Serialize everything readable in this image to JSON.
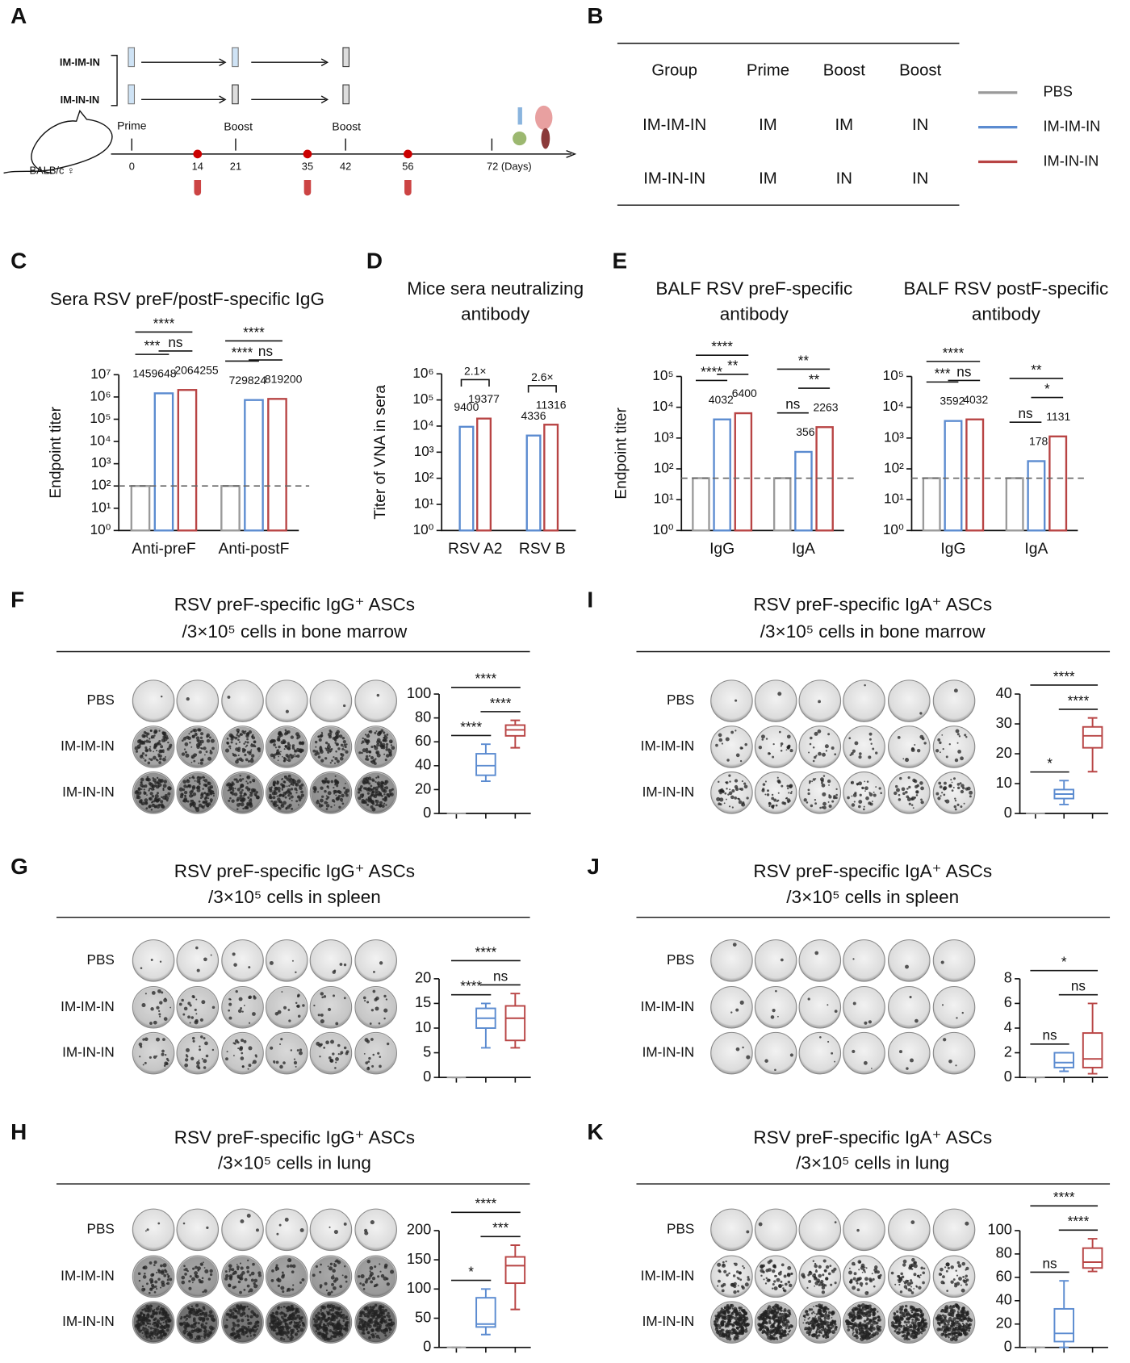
{
  "panel_labels": [
    "A",
    "B",
    "C",
    "D",
    "E",
    "F",
    "G",
    "H",
    "I",
    "J",
    "K"
  ],
  "schematic": {
    "groups": [
      "IM-IM-IN",
      "IM-IN-IN"
    ],
    "steps": [
      "Prime",
      "Boost",
      "Boost"
    ],
    "mouse": "BALB/c ♀",
    "days": [
      "0",
      "14",
      "21",
      "35",
      "42",
      "56",
      "72 (Days)"
    ]
  },
  "table": {
    "header": [
      "Group",
      "Prime",
      "Boost",
      "Boost"
    ],
    "rows": [
      [
        "IM-IM-IN",
        "IM",
        "IM",
        "IN"
      ],
      [
        "IM-IN-IN",
        "IM",
        "IN",
        "IN"
      ]
    ]
  },
  "legend": [
    {
      "name": "PBS",
      "color": "#9a9a9a"
    },
    {
      "name": "IM-IM-IN",
      "color": "#5b8bd0"
    },
    {
      "name": "IM-IN-IN",
      "color": "#b84444"
    }
  ],
  "chart_data": [
    {
      "type": "bar",
      "title": [
        "Sera RSV preF/postF-specific  IgG"
      ],
      "y_label": "Endpoint titer",
      "log_scale": true,
      "categories": [
        "Anti-preF",
        "Anti-postF"
      ],
      "series": [
        {
          "name": "PBS",
          "color": "#9a9a9a",
          "values": [
            100,
            100
          ],
          "labels": false
        },
        {
          "name": "IM-IM-IN",
          "color": "#5b8bd0",
          "values": [
            1459648,
            729824
          ],
          "labels": true
        },
        {
          "name": "IM-IN-IN",
          "color": "#b84444",
          "values": [
            2064255,
            819200
          ],
          "labels": true
        }
      ],
      "ylim": [
        1,
        10000000
      ],
      "yticks": [
        {
          "value": 1,
          "label": "10⁰"
        },
        {
          "value": 10,
          "label": "10¹"
        },
        {
          "value": 100,
          "label": "10²"
        },
        {
          "value": 1000,
          "label": "10³"
        },
        {
          "value": 10000,
          "label": "10⁴"
        },
        {
          "value": 100000,
          "label": "10⁵"
        },
        {
          "value": 1000000,
          "label": "10⁶"
        },
        {
          "value": 10000000,
          "label": "10⁷"
        }
      ],
      "reference_line": 100,
      "comparisons": [
        {
          "label": "***",
          "between": [
            0,
            1
          ]
        },
        {
          "label": "ns",
          "between": [
            1,
            2
          ]
        },
        {
          "label": "****",
          "between": [
            0,
            2
          ]
        },
        {
          "label": "****",
          "between": [
            3,
            4
          ]
        },
        {
          "label": "ns",
          "between": [
            4,
            5
          ]
        },
        {
          "label": "****",
          "between": [
            3,
            5
          ]
        }
      ]
    },
    {
      "type": "bar",
      "title": [
        "Mice sera neutralizing",
        "antibody"
      ],
      "y_label": "Titer of VNA in sera",
      "log_scale": true,
      "bracket": true,
      "categories": [
        "RSV A2",
        "RSV B"
      ],
      "series": [
        {
          "name": "IM-IM-IN",
          "color": "#5b8bd0",
          "values": [
            9400,
            4336
          ],
          "labels": true
        },
        {
          "name": "IM-IN-IN",
          "color": "#b84444",
          "values": [
            19377,
            11316
          ],
          "labels": true
        }
      ],
      "ylim": [
        1,
        1000000
      ],
      "yticks": [
        {
          "value": 1,
          "label": "10⁰"
        },
        {
          "value": 10,
          "label": "10¹"
        },
        {
          "value": 100,
          "label": "10²"
        },
        {
          "value": 1000,
          "label": "10³"
        },
        {
          "value": 10000,
          "label": "10⁴"
        },
        {
          "value": 100000,
          "label": "10⁵"
        },
        {
          "value": 1000000,
          "label": "10⁶"
        }
      ],
      "comparisons": [
        {
          "label": "2.1×",
          "between": [
            0,
            1
          ]
        },
        {
          "label": "2.6×",
          "between": [
            2,
            3
          ]
        }
      ]
    },
    {
      "type": "bar",
      "title": [
        "BALF RSV preF-specific",
        "antibody"
      ],
      "y_label": "Endpoint titer",
      "log_scale": true,
      "categories": [
        "IgG",
        "IgA"
      ],
      "series": [
        {
          "name": "PBS",
          "color": "#9a9a9a",
          "values": [
            50,
            50
          ],
          "labels": false
        },
        {
          "name": "IM-IM-IN",
          "color": "#5b8bd0",
          "values": [
            4032,
            356
          ],
          "labels": true
        },
        {
          "name": "IM-IN-IN",
          "color": "#b84444",
          "values": [
            6400,
            2263
          ],
          "labels": true
        }
      ],
      "ylim": [
        1,
        100000
      ],
      "yticks": [
        {
          "value": 1,
          "label": "10⁰"
        },
        {
          "value": 10,
          "label": "10¹"
        },
        {
          "value": 100,
          "label": "10²"
        },
        {
          "value": 1000,
          "label": "10³"
        },
        {
          "value": 10000,
          "label": "10⁴"
        },
        {
          "value": 100000,
          "label": "10⁵"
        }
      ],
      "reference_line": 50,
      "comparisons": [
        {
          "label": "****",
          "between": [
            0,
            1
          ]
        },
        {
          "label": "**",
          "between": [
            1,
            2
          ]
        },
        {
          "label": "****",
          "between": [
            0,
            2
          ]
        },
        {
          "label": "ns",
          "between": [
            3,
            4
          ]
        },
        {
          "label": "**",
          "between": [
            4,
            5
          ]
        },
        {
          "label": "**",
          "between": [
            3,
            5
          ]
        }
      ]
    },
    {
      "type": "bar",
      "title": [
        "BALF RSV postF-specific",
        "antibody"
      ],
      "log_scale": true,
      "categories": [
        "IgG",
        "IgA"
      ],
      "series": [
        {
          "name": "PBS",
          "color": "#9a9a9a",
          "values": [
            50,
            50
          ],
          "labels": false
        },
        {
          "name": "IM-IM-IN",
          "color": "#5b8bd0",
          "values": [
            3592,
            178
          ],
          "labels": true
        },
        {
          "name": "IM-IN-IN",
          "color": "#b84444",
          "values": [
            4032,
            1131
          ],
          "labels": true
        }
      ],
      "ylim": [
        1,
        100000
      ],
      "yticks": [
        {
          "value": 1,
          "label": "10⁰"
        },
        {
          "value": 10,
          "label": "10¹"
        },
        {
          "value": 100,
          "label": "10²"
        },
        {
          "value": 1000,
          "label": "10³"
        },
        {
          "value": 10000,
          "label": "10⁴"
        },
        {
          "value": 100000,
          "label": "10⁵"
        }
      ],
      "reference_line": 50,
      "comparisons": [
        {
          "label": "***",
          "between": [
            0,
            1
          ]
        },
        {
          "label": "ns",
          "between": [
            1,
            2
          ]
        },
        {
          "label": "****",
          "between": [
            0,
            2
          ]
        },
        {
          "label": "ns",
          "between": [
            3,
            4
          ]
        },
        {
          "label": "*",
          "between": [
            4,
            5
          ]
        },
        {
          "label": "**",
          "between": [
            3,
            5
          ]
        }
      ]
    },
    {
      "type": "box",
      "title": [
        "RSV preF-specific IgG⁺ ASCs",
        "/3×10⁵ cells in bone marrow"
      ],
      "row_labels": [
        "PBS",
        "IM-IM-IN",
        "IM-IN-IN"
      ],
      "series": [
        {
          "color": "#9a9a9a",
          "min": 0,
          "q1": 0,
          "median": 0,
          "q3": 0,
          "max": 0
        },
        {
          "color": "#5b8bd0",
          "min": 27,
          "q1": 32,
          "median": 40,
          "q3": 50,
          "max": 58
        },
        {
          "color": "#b84444",
          "min": 55,
          "q1": 65,
          "median": 70,
          "q3": 74,
          "max": 78
        }
      ],
      "ylim": [
        0,
        100
      ],
      "yticks": [
        0,
        20,
        40,
        60,
        80,
        100
      ],
      "comparisons": [
        {
          "label": "****",
          "between": [
            0,
            1
          ]
        },
        {
          "label": "****",
          "between": [
            1,
            2
          ]
        },
        {
          "label": "****",
          "between": [
            0,
            2
          ]
        }
      ]
    },
    {
      "type": "box",
      "title": [
        "RSV preF-specific IgG⁺ ASCs",
        "/3×10⁵ cells in spleen"
      ],
      "row_labels": [
        "PBS",
        "IM-IM-IN",
        "IM-IN-IN"
      ],
      "series": [
        {
          "color": "#9a9a9a",
          "min": 0,
          "q1": 0,
          "median": 0,
          "q3": 0,
          "max": 0
        },
        {
          "color": "#5b8bd0",
          "min": 6,
          "q1": 10,
          "median": 12,
          "q3": 14,
          "max": 15
        },
        {
          "color": "#b84444",
          "min": 6,
          "q1": 7.5,
          "median": 12,
          "q3": 14.5,
          "max": 17
        }
      ],
      "ylim": [
        0,
        20
      ],
      "yticks": [
        0,
        5,
        10,
        15,
        20
      ],
      "comparisons": [
        {
          "label": "****",
          "between": [
            0,
            1
          ]
        },
        {
          "label": "ns",
          "between": [
            1,
            2
          ]
        },
        {
          "label": "****",
          "between": [
            0,
            2
          ]
        }
      ]
    },
    {
      "type": "box",
      "title": [
        "RSV preF-specific IgG⁺ ASCs",
        "/3×10⁵ cells in lung"
      ],
      "row_labels": [
        "PBS",
        "IM-IM-IN",
        "IM-IN-IN"
      ],
      "series": [
        {
          "color": "#9a9a9a",
          "min": 0,
          "q1": 0,
          "median": 0,
          "q3": 0,
          "max": 0
        },
        {
          "color": "#5b8bd0",
          "min": 22,
          "q1": 35,
          "median": 40,
          "q3": 85,
          "max": 100
        },
        {
          "color": "#b84444",
          "min": 65,
          "q1": 110,
          "median": 140,
          "q3": 155,
          "max": 175
        }
      ],
      "ylim": [
        0,
        200
      ],
      "yticks": [
        0,
        50,
        100,
        150,
        200
      ],
      "comparisons": [
        {
          "label": "*",
          "between": [
            0,
            1
          ]
        },
        {
          "label": "***",
          "between": [
            1,
            2
          ]
        },
        {
          "label": "****",
          "between": [
            0,
            2
          ]
        }
      ]
    },
    {
      "type": "box",
      "title": [
        "RSV preF-specific IgA⁺ ASCs",
        "/3×10⁵ cells in bone marrow"
      ],
      "row_labels": [
        "PBS",
        "IM-IM-IN",
        "IM-IN-IN"
      ],
      "series": [
        {
          "color": "#9a9a9a",
          "min": 0,
          "q1": 0,
          "median": 0,
          "q3": 0,
          "max": 0
        },
        {
          "color": "#5b8bd0",
          "min": 3,
          "q1": 5,
          "median": 6.5,
          "q3": 8,
          "max": 11
        },
        {
          "color": "#b84444",
          "min": 14,
          "q1": 22,
          "median": 26,
          "q3": 29,
          "max": 32
        }
      ],
      "ylim": [
        0,
        40
      ],
      "yticks": [
        0,
        10,
        20,
        30,
        40
      ],
      "comparisons": [
        {
          "label": "*",
          "between": [
            0,
            1
          ]
        },
        {
          "label": "****",
          "between": [
            1,
            2
          ]
        },
        {
          "label": "****",
          "between": [
            0,
            2
          ]
        }
      ]
    },
    {
      "type": "box",
      "title": [
        "RSV preF-specific IgA⁺ ASCs",
        "/3×10⁵ cells in spleen"
      ],
      "row_labels": [
        "PBS",
        "IM-IM-IN",
        "IM-IN-IN"
      ],
      "series": [
        {
          "color": "#9a9a9a",
          "min": 0,
          "q1": 0,
          "median": 0,
          "q3": 0,
          "max": 0
        },
        {
          "color": "#5b8bd0",
          "min": 0.5,
          "q1": 0.8,
          "median": 1.2,
          "q3": 2,
          "max": 2
        },
        {
          "color": "#b84444",
          "min": 0.3,
          "q1": 0.8,
          "median": 1.5,
          "q3": 3.6,
          "max": 6
        }
      ],
      "ylim": [
        0,
        8
      ],
      "yticks": [
        0,
        2,
        4,
        6,
        8
      ],
      "comparisons": [
        {
          "label": "ns",
          "between": [
            0,
            1
          ]
        },
        {
          "label": "ns",
          "between": [
            1,
            2
          ]
        },
        {
          "label": "*",
          "between": [
            0,
            2
          ]
        }
      ]
    },
    {
      "type": "box",
      "title": [
        "RSV preF-specific IgA⁺ ASCs",
        "/3×10⁵ cells in lung"
      ],
      "row_labels": [
        "PBS",
        "IM-IM-IN",
        "IM-IN-IN"
      ],
      "series": [
        {
          "color": "#9a9a9a",
          "min": 0,
          "q1": 0,
          "median": 0,
          "q3": 0,
          "max": 0
        },
        {
          "color": "#5b8bd0",
          "min": 0,
          "q1": 5,
          "median": 12,
          "q3": 33,
          "max": 57
        },
        {
          "color": "#b84444",
          "min": 65,
          "q1": 68,
          "median": 73,
          "q3": 85,
          "max": 93
        }
      ],
      "ylim": [
        0,
        100
      ],
      "yticks": [
        0,
        20,
        40,
        60,
        80,
        100
      ],
      "comparisons": [
        {
          "label": "ns",
          "between": [
            0,
            1
          ]
        },
        {
          "label": "****",
          "between": [
            1,
            2
          ]
        },
        {
          "label": "****",
          "between": [
            0,
            2
          ]
        }
      ]
    }
  ]
}
